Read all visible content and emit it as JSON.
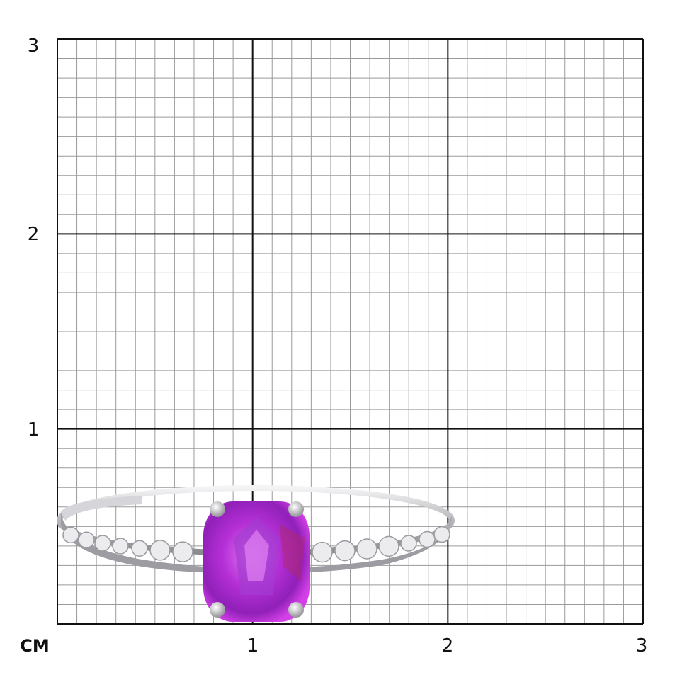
{
  "scale": {
    "unit_label": "CM",
    "x_ticks": [
      "1",
      "2",
      "3"
    ],
    "y_ticks": [
      "3",
      "2",
      "1"
    ],
    "range_cm": [
      0,
      3
    ],
    "minor_divisions_per_cm": 10
  },
  "product": {
    "type": "ring",
    "gem_color": "#c23ae0",
    "metal_color": "#c8c8cc"
  },
  "colors": {
    "major_grid": "#111111",
    "minor_grid": "#9a9a9a"
  }
}
